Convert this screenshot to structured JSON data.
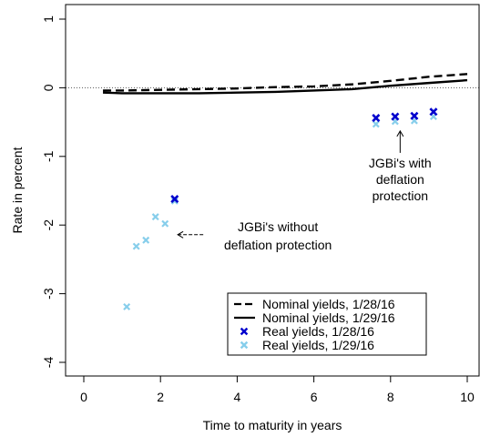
{
  "chart_data": {
    "type": "line",
    "xlabel": "Time to maturity in years",
    "ylabel": "Rate in percent",
    "xlim": [
      0,
      10
    ],
    "ylim": [
      -4,
      1
    ],
    "x_ticks": [
      0,
      2,
      4,
      6,
      8,
      10
    ],
    "y_ticks": [
      -4,
      -3,
      -2,
      -1,
      0,
      1
    ],
    "grid": false,
    "reference_line": {
      "y": 0,
      "style": "dotted"
    },
    "legend": {
      "position": "bottom-right",
      "entries": [
        {
          "label": "Nominal yields, 1/28/16",
          "kind": "dashed-line",
          "color": "#000000"
        },
        {
          "label": "Nominal yields, 1/29/16",
          "kind": "solid-line",
          "color": "#000000"
        },
        {
          "label": "Real yields, 1/28/16",
          "kind": "cross-marker",
          "color": "#0000CD"
        },
        {
          "label": "Real yields, 1/29/16",
          "kind": "cross-marker",
          "color": "#87CEEB"
        }
      ]
    },
    "series": [
      {
        "name": "Nominal yields, 1/28/16",
        "type": "line",
        "style": "dashed",
        "color": "#000000",
        "x": [
          0.5,
          1,
          2,
          3,
          4,
          5,
          6,
          7,
          8,
          9,
          10
        ],
        "y": [
          -0.04,
          -0.04,
          -0.03,
          -0.02,
          -0.01,
          0.01,
          0.02,
          0.05,
          0.1,
          0.16,
          0.2
        ]
      },
      {
        "name": "Nominal yields, 1/29/16",
        "type": "line",
        "style": "solid",
        "color": "#000000",
        "x": [
          0.5,
          1,
          2,
          3,
          4,
          5,
          6,
          7,
          8,
          9,
          10
        ],
        "y": [
          -0.07,
          -0.08,
          -0.08,
          -0.08,
          -0.07,
          -0.06,
          -0.04,
          -0.02,
          0.03,
          0.07,
          0.11
        ]
      },
      {
        "name": "Real yields, 1/28/16",
        "type": "scatter",
        "marker": "x",
        "color": "#0000CD",
        "x": [
          2.37,
          7.62,
          8.12,
          8.62,
          9.12
        ],
        "y": [
          -1.62,
          -0.44,
          -0.42,
          -0.41,
          -0.35
        ]
      },
      {
        "name": "Real yields, 1/29/16",
        "type": "scatter",
        "marker": "x",
        "color": "#87CEEB",
        "x": [
          1.12,
          1.37,
          1.62,
          1.87,
          2.12,
          2.37,
          7.62,
          8.12,
          8.62,
          9.12
        ],
        "y": [
          -3.19,
          -2.31,
          -2.22,
          -1.88,
          -1.98,
          -1.65,
          -0.53,
          -0.49,
          -0.48,
          -0.42
        ]
      }
    ],
    "annotations": [
      {
        "text": [
          "JGBi's without",
          "deflation protection"
        ],
        "point": [
          2.45,
          -2.14
        ],
        "arrow_direction": "left"
      },
      {
        "text": [
          "JGBi's with",
          "deflation",
          "protection"
        ],
        "point": [
          8.25,
          -0.63
        ],
        "arrow_direction": "up"
      }
    ]
  }
}
